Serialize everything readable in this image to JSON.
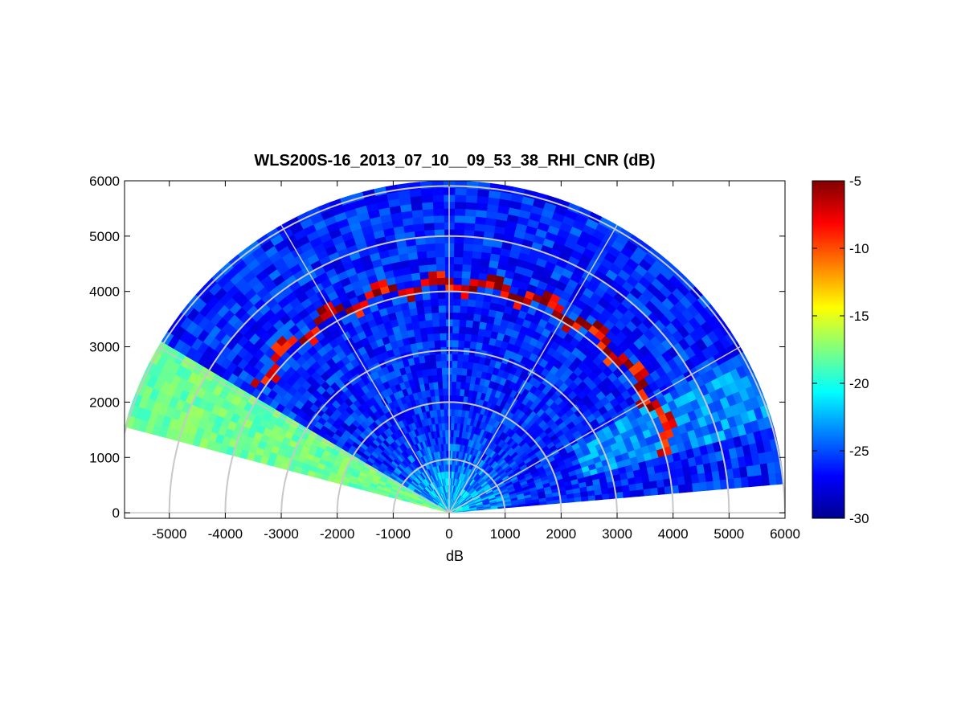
{
  "chart_data": {
    "type": "heatmap",
    "title": "WLS200S-16_2013_07_10__09_53_38_RHI_CNR (dB)",
    "xlabel": "dB",
    "ylabel": "",
    "xlim": [
      -5800,
      6000
    ],
    "ylim": [
      -100,
      6000
    ],
    "xticks": [
      -5000,
      -4000,
      -3000,
      -2000,
      -1000,
      0,
      1000,
      2000,
      3000,
      4000,
      5000,
      6000
    ],
    "yticks": [
      0,
      1000,
      2000,
      3000,
      4000,
      5000,
      6000
    ],
    "grid": true,
    "polar_grid": {
      "range_rings": [
        1000,
        2000,
        3000,
        4000,
        5000,
        6000
      ],
      "radial_angles_deg": [
        0,
        30,
        60,
        90,
        120,
        150,
        180
      ]
    },
    "scan": {
      "max_range": 6000,
      "elevation_start_deg": 5,
      "elevation_end_deg": 165
    },
    "colorbar": {
      "colormap": "jet",
      "min": -30,
      "max": -5,
      "ticks": [
        -5,
        -10,
        -15,
        -20,
        -25,
        -30
      ]
    },
    "features": [
      {
        "name": "cloud-layer",
        "range": 4150,
        "cnr": -7
      },
      {
        "name": "near-range-enhancement",
        "range_max": 1500,
        "cnr": -21
      },
      {
        "name": "low-elevation-band",
        "elevation_from_deg": 148,
        "elevation_to_deg": 165,
        "cnr": -18
      },
      {
        "name": "background",
        "cnr": -26
      }
    ]
  }
}
